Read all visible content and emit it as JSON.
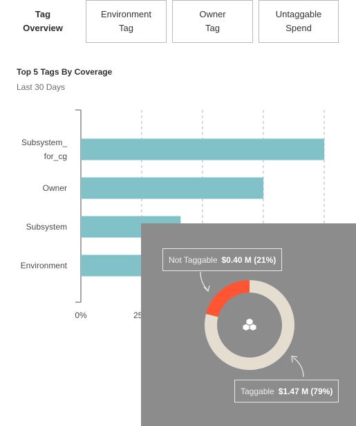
{
  "tabs": [
    {
      "label": "Tag\nOverview",
      "active": true
    },
    {
      "label": "Environment\nTag",
      "active": false
    },
    {
      "label": "Owner\nTag",
      "active": false
    },
    {
      "label": "Untaggable\nSpend",
      "active": false
    }
  ],
  "section": {
    "title": "Top 5 Tags By Coverage",
    "subtitle": "Last 30 Days"
  },
  "chart_data": {
    "type": "bar",
    "orientation": "horizontal",
    "title": "Top 5 Tags By Coverage",
    "categories": [
      "Subsystem_ for_cg",
      "Owner",
      "Subsystem",
      "Environment"
    ],
    "category_lines": [
      [
        "Subsystem_",
        "for_cg"
      ],
      [
        "Owner"
      ],
      [
        "Subsystem"
      ],
      [
        "Environment"
      ]
    ],
    "values": [
      100,
      75,
      41,
      25
    ],
    "unit": "%",
    "xlim": [
      0,
      100
    ],
    "x_ticks": [
      0,
      25,
      50,
      75,
      100
    ],
    "x_tick_labels_visible": [
      "0%",
      "25%"
    ],
    "grid": "vertical dashed",
    "bar_color": "#80c2c8"
  },
  "breakdown": {
    "not_taggable": {
      "label": "Not Taggable",
      "value": "$0.40 M (21%)",
      "share": 0.21,
      "color": "#ff5533"
    },
    "taggable": {
      "label": "Taggable",
      "value": "$1.47 M (79%)",
      "share": 0.79,
      "color": "#e4ddd0"
    },
    "center_icon": "cubes-icon",
    "overlay_color": "#8c8c8c"
  }
}
